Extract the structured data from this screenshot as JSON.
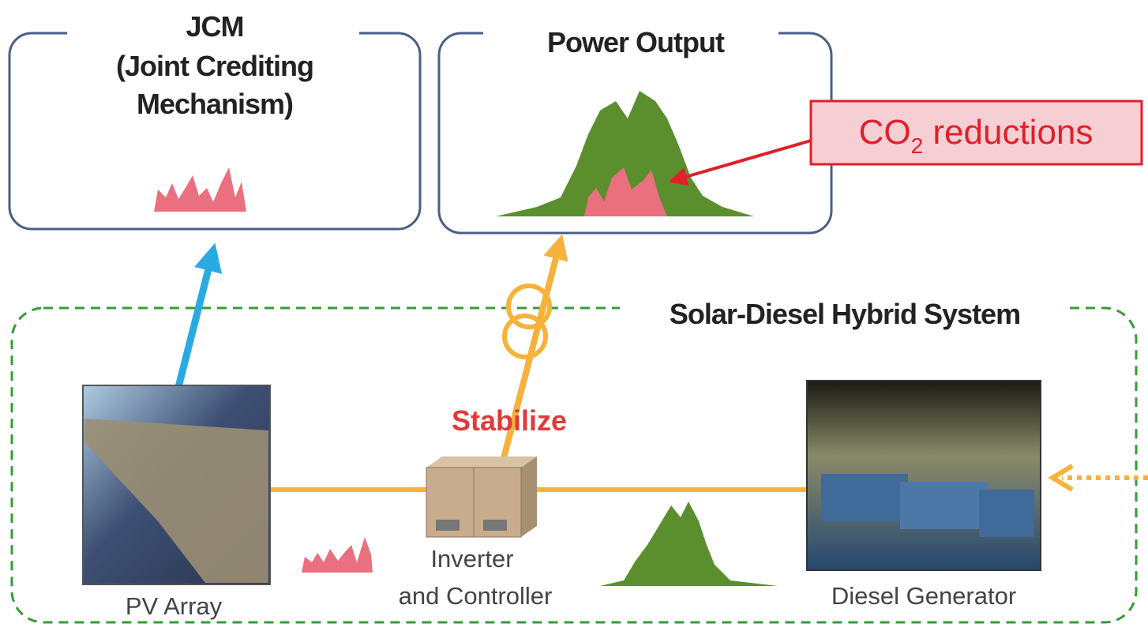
{
  "jcm": {
    "lines": [
      "JCM",
      "(Joint Crediting",
      "Mechanism)"
    ]
  },
  "power_output": {
    "title": "Power Output"
  },
  "callout": {
    "main": "CO",
    "sub": "2",
    "rest": " reductions"
  },
  "system": {
    "title": "Solar-Diesel Hybrid System"
  },
  "stabilize": "Stabilize",
  "pv_array": {
    "label": "PV Array"
  },
  "inverter": {
    "lines": [
      "Inverter",
      "and Controller"
    ]
  },
  "diesel": {
    "label": "Diesel Generator"
  }
}
